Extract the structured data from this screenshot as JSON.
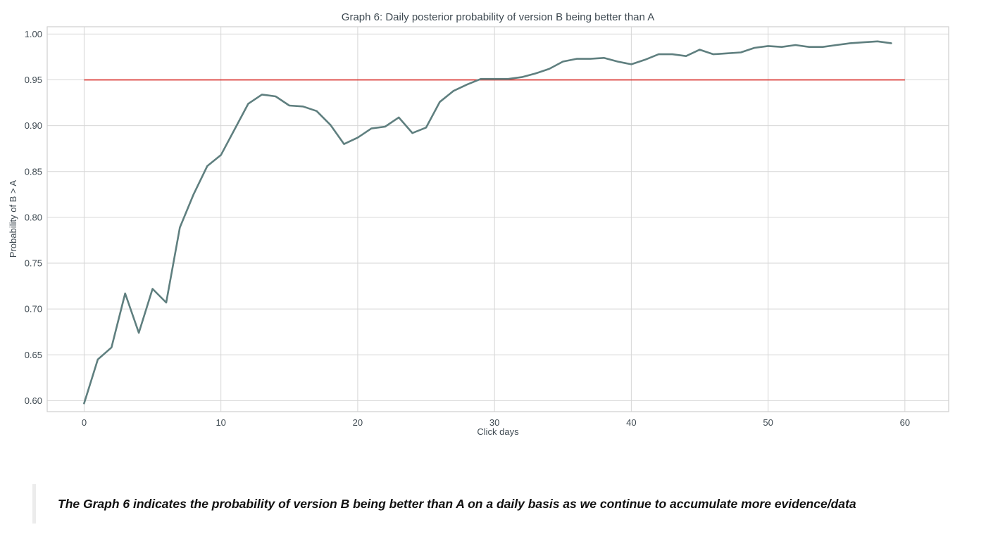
{
  "chart_data": {
    "type": "line",
    "title": "Graph 6: Daily posterior probability of version B being better than A",
    "xlabel": "Click days",
    "ylabel": "Probability of B > A",
    "xlim": [
      -2.7,
      63.2
    ],
    "ylim": [
      0.588,
      1.008
    ],
    "x_ticks": [
      0,
      10,
      20,
      30,
      40,
      50,
      60
    ],
    "y_ticks": [
      0.6,
      0.65,
      0.7,
      0.75,
      0.8,
      0.85,
      0.9,
      0.95,
      1.0
    ],
    "grid": true,
    "series": [
      {
        "color": "#5f7f7f",
        "x": [
          0,
          1,
          2,
          3,
          4,
          5,
          6,
          7,
          8,
          9,
          10,
          11,
          12,
          13,
          14,
          15,
          16,
          17,
          18,
          19,
          20,
          21,
          22,
          23,
          24,
          25,
          26,
          27,
          28,
          29,
          30,
          31,
          32,
          33,
          34,
          35,
          36,
          37,
          38,
          39,
          40,
          41,
          42,
          43,
          44,
          45,
          46,
          47,
          48,
          49,
          50,
          51,
          52,
          53,
          54,
          55,
          56,
          57,
          58,
          59
        ],
        "values": [
          0.597,
          0.645,
          0.658,
          0.717,
          0.674,
          0.722,
          0.707,
          0.789,
          0.825,
          0.856,
          0.868,
          0.896,
          0.924,
          0.934,
          0.932,
          0.922,
          0.921,
          0.916,
          0.901,
          0.88,
          0.887,
          0.897,
          0.899,
          0.909,
          0.892,
          0.898,
          0.926,
          0.938,
          0.945,
          0.951,
          0.951,
          0.951,
          0.953,
          0.957,
          0.962,
          0.97,
          0.973,
          0.973,
          0.974,
          0.97,
          0.967,
          0.972,
          0.978,
          0.978,
          0.976,
          0.983,
          0.978,
          0.979,
          0.98,
          0.985,
          0.987,
          0.986,
          0.988,
          0.986,
          0.986,
          0.988,
          0.99,
          0.991,
          0.992,
          0.99
        ]
      }
    ],
    "reference_line": {
      "y": 0.95,
      "x_range": [
        0,
        60
      ],
      "color": "#d9312b"
    }
  },
  "caption": {
    "text": "The Graph 6 indicates the probability of version B being better than A on a daily basis as we continue to accumulate more evidence/data"
  }
}
